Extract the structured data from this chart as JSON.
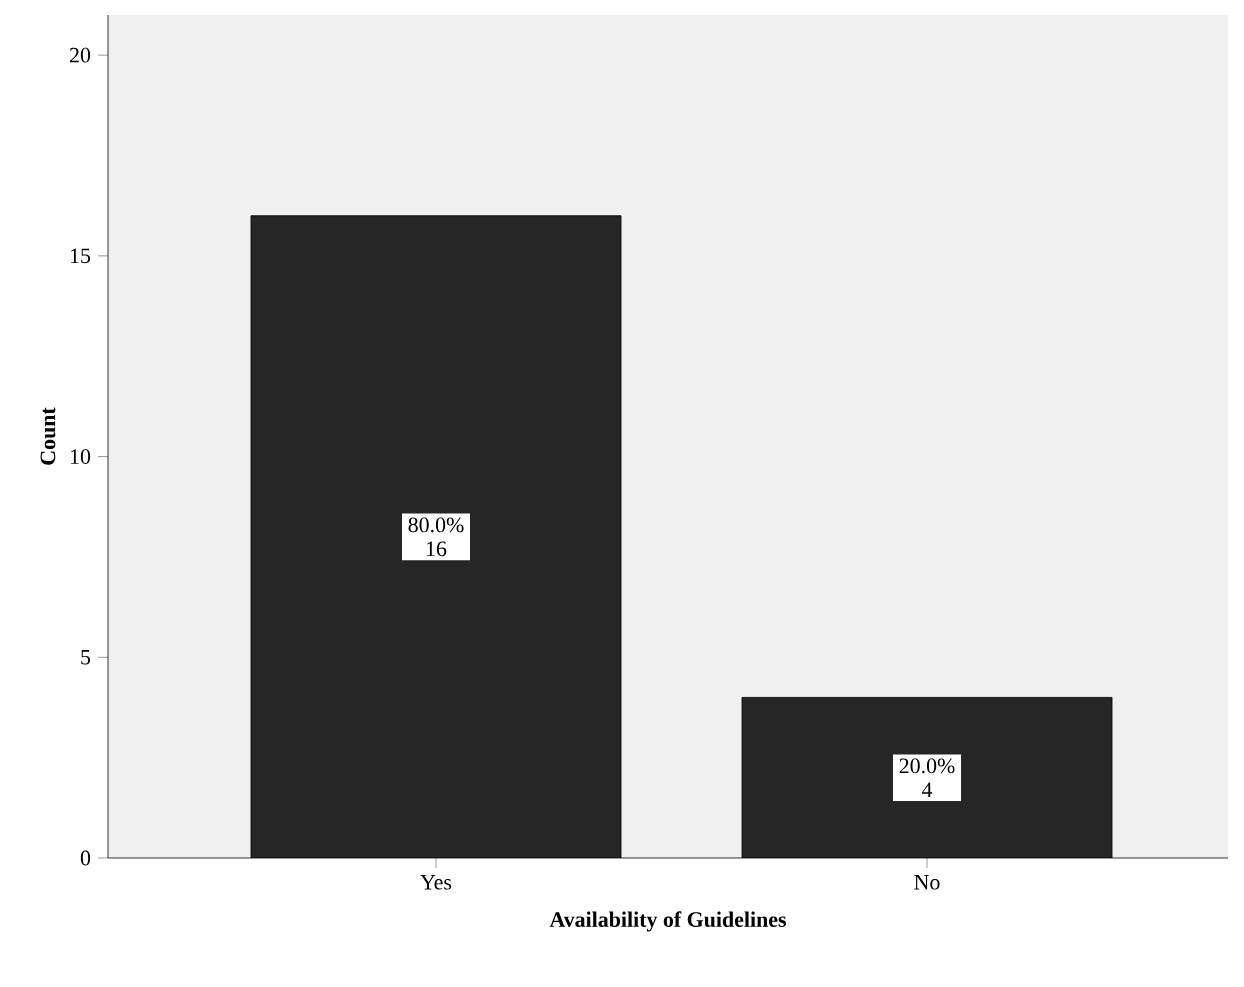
{
  "chart_data": {
    "type": "bar",
    "xlabel": "Availability of Guidelines",
    "ylabel": "Count",
    "categories": [
      "Yes",
      "No"
    ],
    "values": [
      16,
      4
    ],
    "value_labels": [
      "80.0% 16",
      "20.0% 4"
    ],
    "color": "#262626",
    "ylim": [
      0,
      21
    ],
    "yticks": [
      0,
      5,
      10,
      15,
      20
    ]
  }
}
